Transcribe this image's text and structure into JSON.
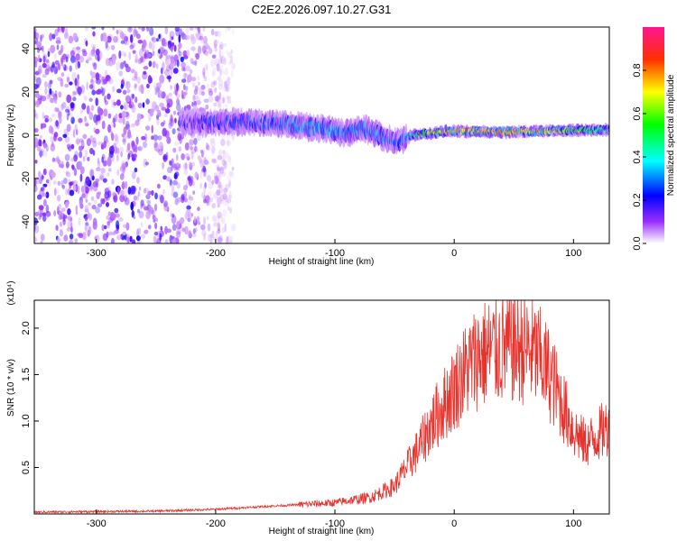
{
  "title": "C2E2.2026.097.10.27.G31",
  "chart_data": [
    {
      "type": "heatmap",
      "xlabel": "Height of straight line (km)",
      "ylabel": "Frequency (Hz)",
      "xlim": [
        -352,
        130
      ],
      "ylim": [
        -50,
        50
      ],
      "xticks": [
        -300,
        -200,
        -100,
        0,
        100
      ],
      "xtick_labels": [
        "-300",
        "-200",
        "-100",
        "0",
        "100"
      ],
      "yticks": [
        -40,
        -20,
        0,
        20,
        40
      ],
      "ytick_labels": [
        "-40",
        "-20",
        "0",
        "20",
        "40"
      ],
      "colorbar": {
        "label": "Normalized spectral amplitude",
        "range": [
          0,
          1
        ],
        "ticks": [
          0.0,
          0.2,
          0.4,
          0.6,
          0.8
        ],
        "tick_labels": [
          "0.0",
          "0.2",
          "0.4",
          "0.6",
          "0.8"
        ]
      },
      "ridge": {
        "x": [
          -230,
          -200,
          -170,
          -140,
          -110,
          -90,
          -75,
          -60,
          -45,
          -35,
          -20,
          0,
          40,
          80,
          130
        ],
        "y": [
          6,
          6,
          6,
          5,
          3,
          1,
          3,
          -1,
          -3,
          0,
          1,
          2,
          1.5,
          2,
          2.5
        ],
        "amplitude": [
          0.15,
          0.22,
          0.25,
          0.3,
          0.35,
          0.3,
          0.32,
          0.3,
          0.25,
          0.45,
          0.65,
          0.75,
          0.75,
          0.7,
          0.4
        ]
      },
      "noise_region": {
        "x_start": -352,
        "x_end": -185,
        "amplitude": 0.15
      }
    },
    {
      "type": "line",
      "xlabel": "Height of straight line (km)",
      "ylabel": "SNR (10 * v/v)",
      "multiplier": "(x10⁴)",
      "xlim": [
        -352,
        130
      ],
      "ylim": [
        0,
        2.3
      ],
      "xticks": [
        -300,
        -200,
        -100,
        0,
        100
      ],
      "xtick_labels": [
        "-300",
        "-200",
        "-100",
        "0",
        "100"
      ],
      "yticks": [
        0.5,
        1.0,
        1.5,
        2.0
      ],
      "ytick_labels": [
        "0.5",
        "1.0",
        "1.5",
        "2.0"
      ],
      "color": "#e8322c",
      "envelope": {
        "x": [
          -352,
          -250,
          -200,
          -160,
          -100,
          -70,
          -50,
          -40,
          -30,
          -20,
          -10,
          0,
          10,
          20,
          30,
          40,
          50,
          60,
          70,
          80,
          90,
          100,
          110,
          120,
          130
        ],
        "y": [
          0.02,
          0.03,
          0.05,
          0.08,
          0.12,
          0.18,
          0.3,
          0.5,
          0.7,
          0.95,
          1.15,
          1.35,
          1.55,
          1.7,
          1.75,
          1.78,
          1.8,
          1.78,
          1.7,
          1.5,
          1.2,
          0.9,
          0.75,
          0.85,
          0.95
        ]
      }
    }
  ]
}
